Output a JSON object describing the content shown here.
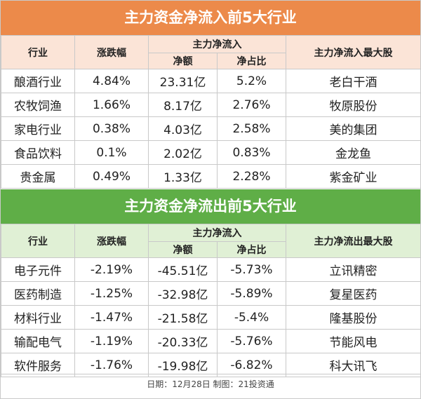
{
  "inflow": {
    "title": "主力资金净流入前5大行业",
    "headers": {
      "industry": "行业",
      "change": "涨跌幅",
      "main_flow": "主力净流入",
      "net_amount": "净额",
      "net_ratio": "净占比",
      "top_stock": "主力净流入最大股"
    },
    "rows": [
      {
        "industry": "酿酒行业",
        "change": "4.84%",
        "amount": "23.31亿",
        "ratio": "5.2%",
        "stock": "老白干酒"
      },
      {
        "industry": "农牧饲渔",
        "change": "1.66%",
        "amount": "8.17亿",
        "ratio": "2.76%",
        "stock": "牧原股份"
      },
      {
        "industry": "家电行业",
        "change": "0.38%",
        "amount": "4.03亿",
        "ratio": "2.58%",
        "stock": "美的集团"
      },
      {
        "industry": "食品饮料",
        "change": "0.1%",
        "amount": "2.02亿",
        "ratio": "0.83%",
        "stock": "金龙鱼"
      },
      {
        "industry": "贵金属",
        "change": "0.49%",
        "amount": "1.33亿",
        "ratio": "2.28%",
        "stock": "紫金矿业"
      }
    ]
  },
  "outflow": {
    "title": "主力资金净流出前5大行业",
    "headers": {
      "industry": "行业",
      "change": "涨跌幅",
      "main_flow": "主力净流入",
      "net_amount": "净额",
      "net_ratio": "净占比",
      "top_stock": "主力净流出最大股"
    },
    "rows": [
      {
        "industry": "电子元件",
        "change": "-2.19%",
        "amount": "-45.51亿",
        "ratio": "-5.73%",
        "stock": "立讯精密"
      },
      {
        "industry": "医药制造",
        "change": "-1.25%",
        "amount": "-32.98亿",
        "ratio": "-5.89%",
        "stock": "复星医药"
      },
      {
        "industry": "材料行业",
        "change": "-1.47%",
        "amount": "-21.58亿",
        "ratio": "-5.4%",
        "stock": "隆基股份"
      },
      {
        "industry": "输配电气",
        "change": "-1.19%",
        "amount": "-20.33亿",
        "ratio": "-5.76%",
        "stock": "节能风电"
      },
      {
        "industry": "软件服务",
        "change": "-1.76%",
        "amount": "-19.98亿",
        "ratio": "-6.82%",
        "stock": "科大讯飞"
      }
    ]
  },
  "footer": "日期：12月28日 制图：21投资通"
}
